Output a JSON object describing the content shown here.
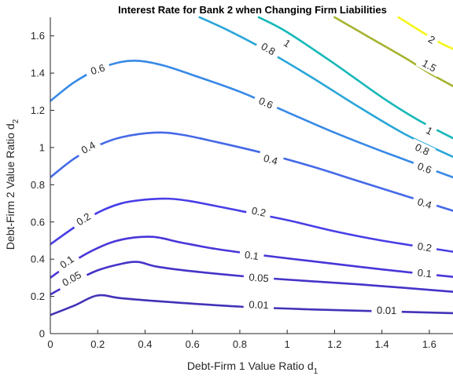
{
  "chart_data": {
    "type": "contour",
    "title": "Interest Rate for Bank 2 when Changing Firm Liabilities",
    "xlabel_main": "Debt-Firm 1 Value Ratio d",
    "xlabel_sub": "1",
    "ylabel_main": "Debt-Firm 2 Value Ratio d",
    "ylabel_sub": "2",
    "xlim": [
      0,
      1.7
    ],
    "ylim": [
      0,
      1.7
    ],
    "xticks": [
      0,
      0.2,
      0.4,
      0.6,
      0.8,
      1,
      1.2,
      1.4,
      1.6
    ],
    "xtick_labels": [
      "0",
      "0.2",
      "0.4",
      "0.6",
      "0.8",
      "1",
      "1.2",
      "1.4",
      "1.6"
    ],
    "yticks": [
      0,
      0.2,
      0.4,
      0.6,
      0.8,
      1,
      1.2,
      1.4,
      1.6
    ],
    "ytick_labels": [
      "0",
      "0.2",
      "0.4",
      "0.6",
      "0.8",
      "1",
      "1.2",
      "1.4",
      "1.6"
    ],
    "levels": [
      {
        "level": "0.01",
        "color": "#4232b7",
        "points": [
          [
            0,
            0.1
          ],
          [
            0.1,
            0.15
          ],
          [
            0.2,
            0.205
          ],
          [
            0.3,
            0.19
          ],
          [
            0.5,
            0.17
          ],
          [
            0.8,
            0.145
          ],
          [
            1.1,
            0.13
          ],
          [
            1.4,
            0.12
          ],
          [
            1.7,
            0.11
          ]
        ],
        "labels": [
          [
            0.88,
            0.155
          ],
          [
            1.42,
            0.125
          ]
        ]
      },
      {
        "level": "0.05",
        "color": "#4533c8",
        "points": [
          [
            0,
            0.21
          ],
          [
            0.1,
            0.28
          ],
          [
            0.2,
            0.34
          ],
          [
            0.3,
            0.375
          ],
          [
            0.37,
            0.385
          ],
          [
            0.45,
            0.36
          ],
          [
            0.6,
            0.335
          ],
          [
            0.8,
            0.31
          ],
          [
            1.0,
            0.29
          ],
          [
            1.3,
            0.265
          ],
          [
            1.7,
            0.225
          ]
        ],
        "labels": [
          [
            0.09,
            0.295
          ],
          [
            0.88,
            0.3
          ]
        ]
      },
      {
        "level": "0.1",
        "color": "#4836d8",
        "points": [
          [
            0,
            0.3
          ],
          [
            0.1,
            0.39
          ],
          [
            0.2,
            0.46
          ],
          [
            0.3,
            0.505
          ],
          [
            0.43,
            0.52
          ],
          [
            0.55,
            0.49
          ],
          [
            0.7,
            0.455
          ],
          [
            0.9,
            0.42
          ],
          [
            1.1,
            0.39
          ],
          [
            1.4,
            0.345
          ],
          [
            1.7,
            0.305
          ]
        ],
        "labels": [
          [
            0.07,
            0.385
          ],
          [
            0.85,
            0.42
          ],
          [
            1.58,
            0.325
          ]
        ]
      },
      {
        "level": "0.2",
        "color": "#473ee6",
        "points": [
          [
            0,
            0.48
          ],
          [
            0.1,
            0.57
          ],
          [
            0.2,
            0.65
          ],
          [
            0.3,
            0.7
          ],
          [
            0.4,
            0.72
          ],
          [
            0.5,
            0.725
          ],
          [
            0.6,
            0.71
          ],
          [
            0.8,
            0.66
          ],
          [
            1.0,
            0.61
          ],
          [
            1.2,
            0.55
          ],
          [
            1.4,
            0.5
          ],
          [
            1.7,
            0.44
          ]
        ],
        "labels": [
          [
            0.14,
            0.615
          ],
          [
            0.88,
            0.655
          ],
          [
            1.58,
            0.465
          ]
        ]
      },
      {
        "level": "0.4",
        "color": "#4569e8",
        "points": [
          [
            0,
            0.84
          ],
          [
            0.1,
            0.94
          ],
          [
            0.2,
            1.01
          ],
          [
            0.3,
            1.055
          ],
          [
            0.44,
            1.08
          ],
          [
            0.55,
            1.07
          ],
          [
            0.7,
            1.03
          ],
          [
            0.9,
            0.97
          ],
          [
            1.1,
            0.9
          ],
          [
            1.3,
            0.82
          ],
          [
            1.5,
            0.74
          ],
          [
            1.7,
            0.66
          ]
        ],
        "labels": [
          [
            0.16,
            1.0
          ],
          [
            0.93,
            0.935
          ],
          [
            1.58,
            0.7
          ]
        ]
      },
      {
        "level": "0.6",
        "color": "#3889e6",
        "points": [
          [
            0,
            1.25
          ],
          [
            0.1,
            1.35
          ],
          [
            0.2,
            1.42
          ],
          [
            0.3,
            1.46
          ],
          [
            0.38,
            1.465
          ],
          [
            0.48,
            1.44
          ],
          [
            0.6,
            1.39
          ],
          [
            0.8,
            1.3
          ],
          [
            1.0,
            1.19
          ],
          [
            1.2,
            1.08
          ],
          [
            1.4,
            0.98
          ],
          [
            1.7,
            0.84
          ]
        ],
        "labels": [
          [
            0.2,
            1.42
          ],
          [
            0.91,
            1.24
          ],
          [
            1.58,
            0.89
          ]
        ]
      },
      {
        "level": "0.8",
        "color": "#2aa6d8",
        "points": [
          [
            0.63,
            1.7
          ],
          [
            0.75,
            1.63
          ],
          [
            0.9,
            1.53
          ],
          [
            1.1,
            1.38
          ],
          [
            1.3,
            1.22
          ],
          [
            1.5,
            1.07
          ],
          [
            1.7,
            0.95
          ]
        ],
        "labels": [
          [
            0.92,
            1.53
          ],
          [
            1.57,
            0.99
          ]
        ]
      },
      {
        "level": "1",
        "color": "#17b8b8",
        "points": [
          [
            0.88,
            1.7
          ],
          [
            1.0,
            1.62
          ],
          [
            1.2,
            1.45
          ],
          [
            1.4,
            1.27
          ],
          [
            1.55,
            1.15
          ],
          [
            1.7,
            1.05
          ]
        ],
        "labels": [
          [
            1.0,
            1.56
          ],
          [
            1.6,
            1.09
          ]
        ]
      },
      {
        "level": "1.5",
        "color": "#a7b32f",
        "points": [
          [
            1.2,
            1.7
          ],
          [
            1.35,
            1.59
          ],
          [
            1.5,
            1.48
          ],
          [
            1.6,
            1.4
          ],
          [
            1.7,
            1.33
          ]
        ],
        "labels": [
          [
            1.6,
            1.44
          ]
        ]
      },
      {
        "level": "2",
        "color": "#f5f51f",
        "points": [
          [
            1.47,
            1.7
          ],
          [
            1.57,
            1.62
          ],
          [
            1.65,
            1.56
          ],
          [
            1.7,
            1.53
          ]
        ],
        "labels": [
          [
            1.61,
            1.58
          ]
        ]
      }
    ]
  }
}
